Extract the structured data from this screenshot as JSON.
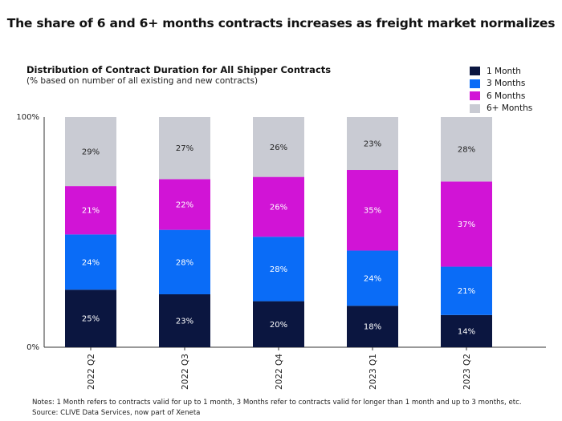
{
  "headline": "The share of 6 and 6+ months contracts increases as freight market normalizes",
  "chart_data": {
    "type": "bar",
    "stacked": true,
    "title": "Distribution of Contract Duration for All Shipper Contracts",
    "subtitle": "(% based on number of all existing and new contracts)",
    "categories": [
      "2022 Q2",
      "2022 Q3",
      "2022 Q4",
      "2023 Q1",
      "2023 Q2"
    ],
    "series": [
      {
        "name": "1 Month",
        "color": "#0b1640",
        "values": [
          25,
          23,
          20,
          18,
          14
        ]
      },
      {
        "name": "3 Months",
        "color": "#0a6cf7",
        "values": [
          24,
          28,
          28,
          24,
          21
        ]
      },
      {
        "name": "6 Months",
        "color": "#d114d6",
        "values": [
          21,
          22,
          26,
          35,
          37
        ]
      },
      {
        "name": "6+ Months",
        "color": "#c9cbd3",
        "values": [
          29,
          27,
          26,
          23,
          28
        ]
      }
    ],
    "ylim": [
      0,
      100
    ],
    "y_ticks": [
      "0%",
      "100%"
    ],
    "legend_position": "top-right"
  },
  "notes": [
    "Notes: 1 Month refers to contracts valid for up to 1 month, 3 Months refer to contracts valid for longer than 1 month and up to 3 months, etc.",
    "Source: CLIVE Data Services, now part of Xeneta"
  ]
}
